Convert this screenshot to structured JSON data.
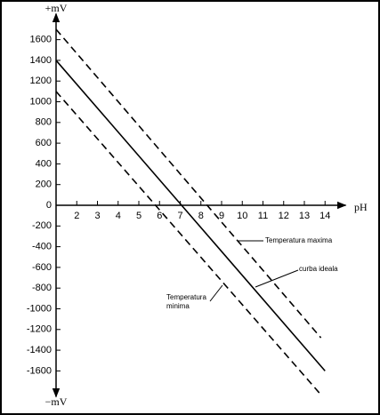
{
  "chart_data": {
    "type": "line",
    "y_label_top": "+mV",
    "y_label_bottom": "−mV",
    "x_label": "pH",
    "xlim": [
      1,
      15
    ],
    "ylim": [
      -1850,
      1850
    ],
    "xticks": [
      2,
      3,
      4,
      5,
      6,
      7,
      8,
      9,
      10,
      11,
      12,
      13,
      14
    ],
    "yticks": [
      1600,
      1400,
      1200,
      1000,
      800,
      600,
      400,
      200,
      0,
      -200,
      -400,
      -600,
      -800,
      -1000,
      -1200,
      -1400,
      -1600
    ],
    "series": [
      {
        "name": "Temperatura maxima",
        "color": "#000000",
        "dashed": true,
        "x": [
          1,
          13.8
        ],
        "values": [
          1700,
          -1280
        ]
      },
      {
        "name": "curba ideala",
        "color": "#000000",
        "dashed": false,
        "x": [
          1,
          14
        ],
        "values": [
          1400,
          -1600
        ]
      },
      {
        "name": "Temperatura minima",
        "color": "#000000",
        "dashed": true,
        "x": [
          1,
          13.8
        ],
        "values": [
          1100,
          -1830
        ]
      }
    ]
  }
}
